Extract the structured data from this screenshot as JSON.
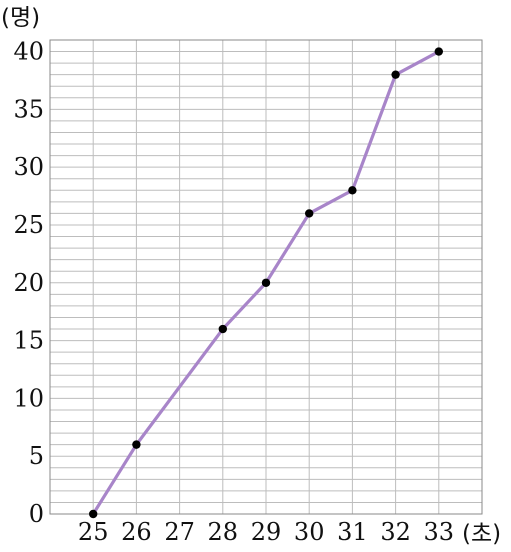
{
  "chart_data": {
    "type": "line",
    "title": "",
    "xlabel": "",
    "ylabel": "",
    "x_unit": "(초)",
    "y_unit": "(명)",
    "x": [
      25,
      26,
      27,
      28,
      29,
      30,
      31,
      32,
      33
    ],
    "x_tick_labels": [
      "25",
      "26",
      "27",
      "28",
      "29",
      "30",
      "31",
      "32",
      "33"
    ],
    "y_tick_labels": [
      "0",
      "5",
      "10",
      "15",
      "20",
      "25",
      "30",
      "35",
      "40"
    ],
    "xlim": [
      24,
      34
    ],
    "ylim": [
      0,
      41
    ],
    "grid": true,
    "series": [
      {
        "points": [
          [
            25,
            0
          ],
          [
            26,
            6
          ],
          [
            28,
            16
          ],
          [
            29,
            20
          ],
          [
            30,
            26
          ],
          [
            31,
            28
          ],
          [
            32,
            38
          ],
          [
            33,
            40
          ]
        ],
        "color": "#a885c9",
        "marker_color": "#000000"
      }
    ]
  }
}
